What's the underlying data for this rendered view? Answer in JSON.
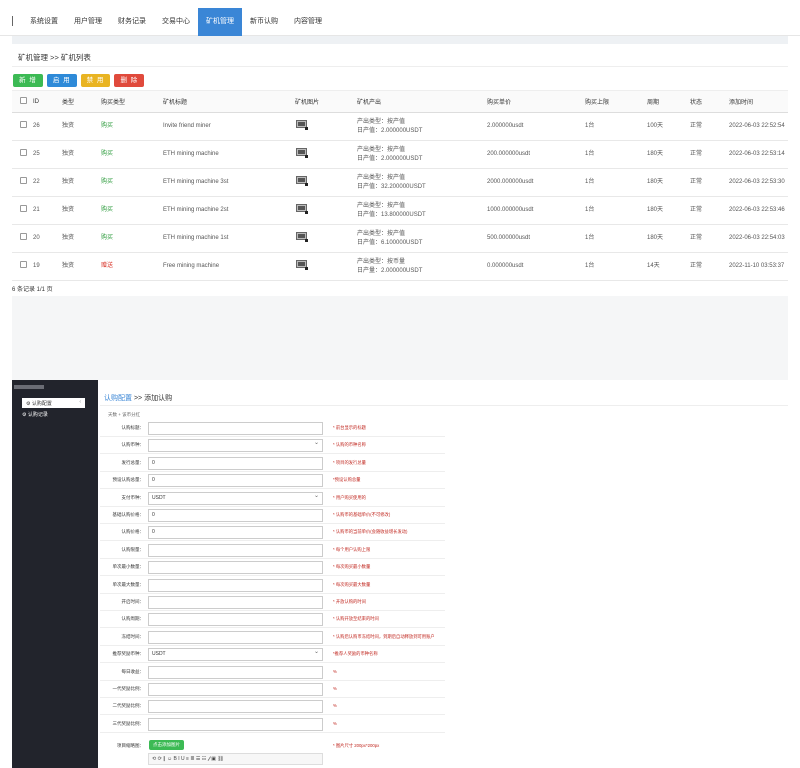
{
  "topnav": {
    "items": [
      {
        "label": "系统设置",
        "active": false
      },
      {
        "label": "用户管理",
        "active": false
      },
      {
        "label": "财务记录",
        "active": false
      },
      {
        "label": "交易中心",
        "active": false
      },
      {
        "label": "矿机管理",
        "active": true
      },
      {
        "label": "新币认购",
        "active": false
      },
      {
        "label": "内容管理",
        "active": false
      }
    ]
  },
  "list_page": {
    "breadcrumb": "矿机管理  >>  矿机列表",
    "buttons": {
      "add": "新 增",
      "enable": "启 用",
      "disable": "禁 用",
      "delete": "删 除"
    },
    "columns": [
      "",
      "ID",
      "类型",
      "购买类型",
      "矿机标题",
      "矿机图片",
      "矿机产出",
      "购买单价",
      "购买上限",
      "周期",
      "状态",
      "添加时间"
    ],
    "rows": [
      {
        "id": "26",
        "type": "独资",
        "buy_type": "购买",
        "buy_kind": "buy",
        "title": "Invite friend miner",
        "out1": "产出类型：按产值",
        "out2": "日产值：2.000000USDT",
        "price": "2.000000usdt",
        "limit": "1台",
        "period": "100天",
        "status": "正常",
        "time": "2022-06-03 22:52:54"
      },
      {
        "id": "25",
        "type": "独资",
        "buy_type": "购买",
        "buy_kind": "buy",
        "title": "ETH mining machine",
        "out1": "产出类型：按产值",
        "out2": "日产值：2.000000USDT",
        "price": "200.000000usdt",
        "limit": "1台",
        "period": "180天",
        "status": "正常",
        "time": "2022-06-03 22:53:14"
      },
      {
        "id": "22",
        "type": "独资",
        "buy_type": "购买",
        "buy_kind": "buy",
        "title": "ETH mining machine 3st",
        "out1": "产出类型：按产值",
        "out2": "日产值：32.200000USDT",
        "price": "2000.000000usdt",
        "limit": "1台",
        "period": "180天",
        "status": "正常",
        "time": "2022-06-03 22:53:30"
      },
      {
        "id": "21",
        "type": "独资",
        "buy_type": "购买",
        "buy_kind": "buy",
        "title": "ETH mining machine 2st",
        "out1": "产出类型：按产值",
        "out2": "日产值：13.800000USDT",
        "price": "1000.000000usdt",
        "limit": "1台",
        "period": "180天",
        "status": "正常",
        "time": "2022-06-03 22:53:46"
      },
      {
        "id": "20",
        "type": "独资",
        "buy_type": "购买",
        "buy_kind": "buy",
        "title": "ETH mining machine 1st",
        "out1": "产出类型：按产值",
        "out2": "日产值：6.100000USDT",
        "price": "500.000000usdt",
        "limit": "1台",
        "period": "180天",
        "status": "正常",
        "time": "2022-06-03 22:54:03"
      },
      {
        "id": "19",
        "type": "独资",
        "buy_type": "赠送",
        "buy_kind": "gift",
        "title": "Free mining machine",
        "out1": "产出类型：按币量",
        "out2": "日产量：2.000000USDT",
        "price": "0.000000usdt",
        "limit": "1台",
        "period": "14天",
        "status": "正常",
        "time": "2022-11-10 03:53:37"
      }
    ],
    "total": "6 条记录 1/1 页"
  },
  "sidebar": {
    "items": [
      {
        "label": "认购配置",
        "icon": "gear-icon",
        "active": true
      },
      {
        "label": "认购记录",
        "icon": "gear-icon",
        "active": false
      }
    ],
    "arrow": "‹"
  },
  "form_page": {
    "breadcrumb_link": "认购配置",
    "breadcrumb_sep": " >> ",
    "breadcrumb_current": "添加认购",
    "sub_crumb": "天数 + 该币分红",
    "fields": [
      {
        "label": "认购标题：",
        "value": "",
        "select": false,
        "hint": "* 前台显示的标题"
      },
      {
        "label": "认购币种：",
        "value": "",
        "select": true,
        "hint": "* 认购的币种名称"
      },
      {
        "label": "发行总量：",
        "value": "0",
        "select": false,
        "hint": "* 项目的发行总量"
      },
      {
        "label": "预设认购总量：",
        "value": "0",
        "select": false,
        "hint": "*预设认购总量"
      },
      {
        "label": "支付币种：",
        "value": "USDT",
        "select": true,
        "hint": "* 用户购买使用的"
      },
      {
        "label": "基础认购价格：",
        "value": "0",
        "select": false,
        "hint": "* 认购币的基础单价(不可修改)"
      },
      {
        "label": "认购价格：",
        "value": "0",
        "select": false,
        "hint": "* 认购币的当前单价(会随收益增长发动)"
      },
      {
        "label": "认购限量：",
        "value": "",
        "select": false,
        "hint": "* 每个用户认购上限"
      },
      {
        "label": "单次最小数量：",
        "value": "",
        "select": false,
        "hint": "* 每次购买最小数量"
      },
      {
        "label": "单次最大数量：",
        "value": "",
        "select": false,
        "hint": "* 每次购买最大数量"
      },
      {
        "label": "开启时间：",
        "value": "",
        "select": false,
        "hint": "* 开放认购的时间"
      },
      {
        "label": "认购周期：",
        "value": "",
        "select": false,
        "hint": "* 认购开放至结束的时间"
      },
      {
        "label": "冻结时间：",
        "value": "",
        "select": false,
        "hint": "* 认购后认购币冻结时间，到期后自动释放到可用账户"
      },
      {
        "label": "推荐奖励币种：",
        "value": "USDT",
        "select": true,
        "hint": "*推荐人奖励的币种名称"
      },
      {
        "label": "每日收益：",
        "value": "",
        "select": false,
        "hint": "%"
      },
      {
        "label": "一代奖励比例：",
        "value": "",
        "select": false,
        "hint": "%"
      },
      {
        "label": "二代奖励比例：",
        "value": "",
        "select": false,
        "hint": "%"
      },
      {
        "label": "三代奖励比例：",
        "value": "",
        "select": false,
        "hint": "%"
      }
    ],
    "thumb_label": "项目缩略图：",
    "upload_button": "点击添加图片",
    "upload_hint": "* 图片尺寸 200px*200px",
    "editor_toolbar": "⟲ ⟳ ∥ ☺ B I U ≡ ≣ ☰ ☷ 𝒻 ▣ ⛓"
  }
}
